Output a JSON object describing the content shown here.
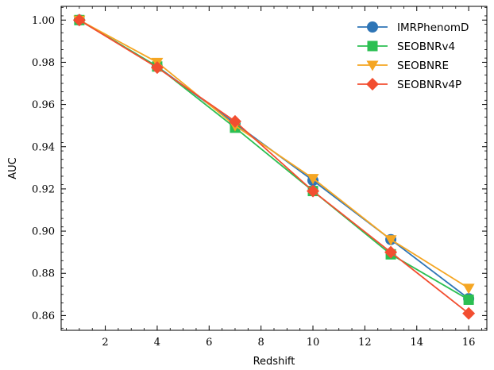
{
  "chart_data": {
    "type": "line",
    "title": "",
    "xlabel": "Redshift",
    "ylabel": "AUC",
    "xlim": [
      0.3,
      16.7
    ],
    "ylim": [
      0.853,
      1.0065
    ],
    "x_ticks": [
      2,
      4,
      6,
      8,
      10,
      12,
      14,
      16
    ],
    "y_ticks": [
      0.86,
      0.88,
      0.9,
      0.92,
      0.94,
      0.96,
      0.98,
      1.0
    ],
    "x_tick_labels": [
      "2",
      "4",
      "6",
      "8",
      "10",
      "12",
      "14",
      "16"
    ],
    "y_tick_labels": [
      "0.86",
      "0.88",
      "0.90",
      "0.92",
      "0.94",
      "0.96",
      "0.98",
      "1.00"
    ],
    "grid": false,
    "legend_position": "top-right",
    "x": [
      1,
      4,
      7,
      10,
      13,
      16
    ],
    "series": [
      {
        "name": "IMRPhenomD",
        "marker": "circle",
        "color": "#2e75b6",
        "values": [
          1.0,
          0.978,
          0.951,
          0.924,
          0.896,
          0.868
        ]
      },
      {
        "name": "SEOBNRv4",
        "marker": "square",
        "color": "#2bbf52",
        "values": [
          1.0,
          0.978,
          0.949,
          0.919,
          0.889,
          0.8675
        ]
      },
      {
        "name": "SEOBNRE",
        "marker": "triangle-down",
        "color": "#f5a623",
        "values": [
          1.0,
          0.98,
          0.95,
          0.925,
          0.896,
          0.873
        ]
      },
      {
        "name": "SEOBNRv4P",
        "marker": "diamond",
        "color": "#f24e30",
        "values": [
          1.0,
          0.9775,
          0.952,
          0.919,
          0.89,
          0.861
        ]
      }
    ]
  }
}
